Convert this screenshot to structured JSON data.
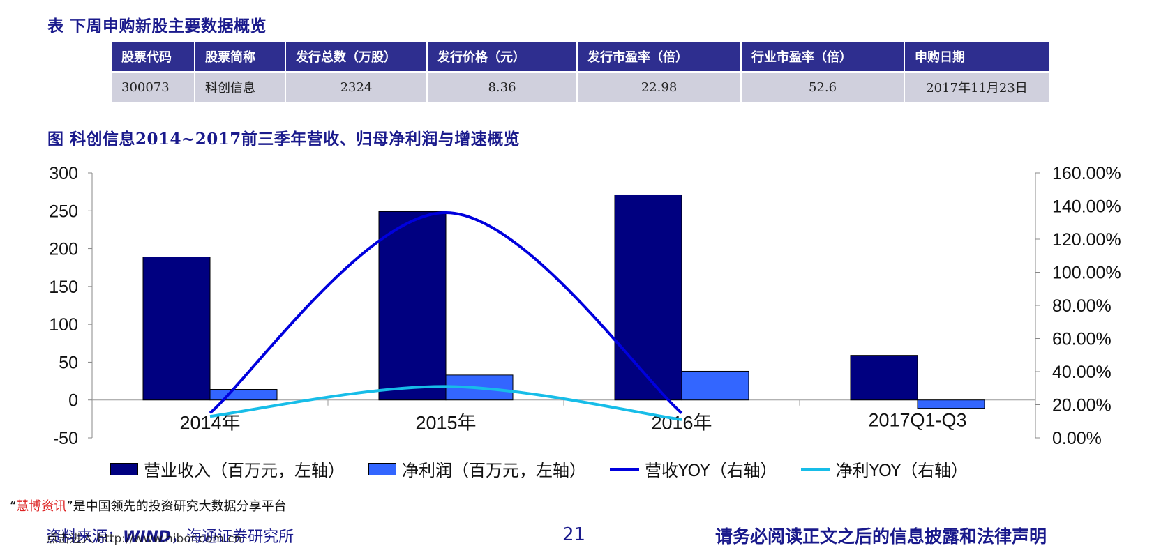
{
  "table_title": "表 下周申购新股主要数据概览",
  "table": {
    "headers": [
      "股票代码",
      "股票简称",
      "发行总数（万股）",
      "发行价格（元）",
      "发行市盈率（倍）",
      "行业市盈率（倍）",
      "申购日期"
    ],
    "rows": [
      [
        "300073",
        "科创信息",
        "2324",
        "8.36",
        "22.98",
        "52.6",
        "2017年11月23日"
      ]
    ]
  },
  "chart_title": "图 科创信息2014~2017前三季年营收、归母净利润与增速概览",
  "chart_data": {
    "type": "bar",
    "categories": [
      "2014年",
      "2015年",
      "2016年",
      "2017Q1-Q3"
    ],
    "series": [
      {
        "name": "营业收入（百万元，左轴）",
        "kind": "bar",
        "axis": "left",
        "color": "#000080",
        "values": [
          189,
          249,
          271,
          59
        ]
      },
      {
        "name": "净利润（百万元，左轴）",
        "kind": "bar",
        "axis": "left",
        "color": "#3366ff",
        "values": [
          14,
          33,
          38,
          -11
        ]
      },
      {
        "name": "营收YOY（右轴）",
        "kind": "line",
        "axis": "right",
        "color": "#0000dd",
        "values": [
          0.15,
          1.36,
          0.15,
          null
        ]
      },
      {
        "name": "净利YOY（右轴）",
        "kind": "line",
        "axis": "right",
        "color": "#17bde8",
        "values": [
          0.13,
          0.31,
          0.11,
          null
        ]
      }
    ],
    "y_left": {
      "min": -50,
      "max": 300,
      "ticks": [
        "300",
        "250",
        "200",
        "150",
        "100",
        "50",
        "0",
        "-50"
      ]
    },
    "y_right": {
      "min": 0,
      "max": 1.6,
      "ticks": [
        "160.00%",
        "140.00%",
        "120.00%",
        "100.00%",
        "80.00%",
        "60.00%",
        "40.00%",
        "20.00%",
        "0.00%"
      ]
    },
    "legend_position": "bottom",
    "grid": false
  },
  "legend": [
    {
      "label": "营业收入（百万元，左轴）",
      "type": "box",
      "color": "#000080"
    },
    {
      "label": "净利润（百万元，左轴）",
      "type": "box",
      "color": "#3366ff"
    },
    {
      "label": "营收YOY（右轴）",
      "type": "line",
      "color": "#0000dd"
    },
    {
      "label": "净利YOY（右轴）",
      "type": "line",
      "color": "#17bde8"
    }
  ],
  "watermark": {
    "open_quote": "“",
    "brand": "慧博资讯",
    "close_quote": "”",
    "text": "是中国领先的投资研究大数据分享平台"
  },
  "source": {
    "prefix": "资料来源：",
    "wind": "WIND",
    "suffix": "，海通证券研究所"
  },
  "source_url": "点击进入 http://www.hibor.com.cn",
  "page_number": "21",
  "disclaimer": "请务必阅读正文之后的信息披露和法律声明"
}
